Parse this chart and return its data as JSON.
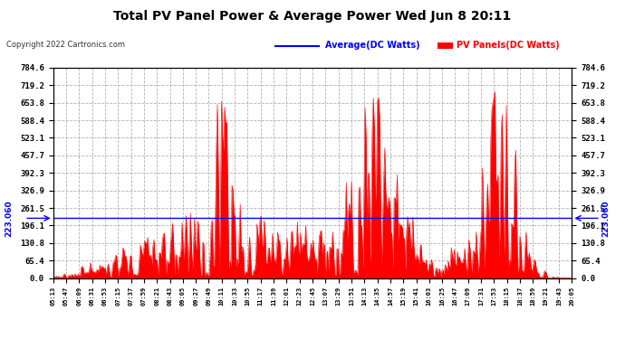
{
  "title": "Total PV Panel Power & Average Power Wed Jun 8 20:11",
  "copyright": "Copyright 2022 Cartronics.com",
  "legend_avg": "Average(DC Watts)",
  "legend_pv": "PV Panels(DC Watts)",
  "avg_value": 223.06,
  "y_ticks": [
    0.0,
    65.4,
    130.8,
    196.1,
    261.5,
    326.9,
    392.3,
    457.7,
    523.1,
    588.4,
    653.8,
    719.2,
    784.6
  ],
  "y_max": 784.6,
  "y_min": 0.0,
  "x_labels": [
    "05:13",
    "05:47",
    "06:09",
    "06:31",
    "06:53",
    "07:15",
    "07:37",
    "07:59",
    "08:21",
    "08:43",
    "09:05",
    "09:27",
    "09:49",
    "10:11",
    "10:33",
    "10:55",
    "11:17",
    "11:39",
    "12:01",
    "12:23",
    "12:45",
    "13:07",
    "13:29",
    "13:51",
    "14:13",
    "14:35",
    "14:57",
    "15:19",
    "15:41",
    "16:03",
    "16:25",
    "16:47",
    "17:09",
    "17:31",
    "17:53",
    "18:15",
    "18:37",
    "18:59",
    "19:21",
    "19:43",
    "20:05"
  ],
  "background_color": "#ffffff",
  "fill_color": "#ff0000",
  "avg_line_color": "#0000ff",
  "grid_color": "#aaaaaa",
  "title_color": "#000000",
  "avg_label_color": "#0000ff",
  "pv_label_color": "#ff0000",
  "n_points": 500
}
